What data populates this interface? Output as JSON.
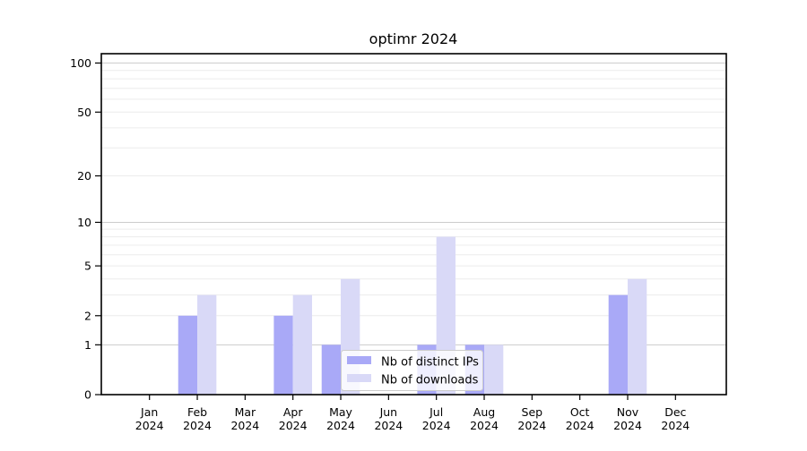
{
  "chart_data": {
    "type": "bar",
    "title": "optimr 2024",
    "categories": [
      "Jan 2024",
      "Feb 2024",
      "Mar 2024",
      "Apr 2024",
      "May 2024",
      "Jun 2024",
      "Jul 2024",
      "Aug 2024",
      "Sep 2024",
      "Oct 2024",
      "Nov 2024",
      "Dec 2024"
    ],
    "series": [
      {
        "name": "Nb of distinct IPs",
        "color": "#a9a9f7",
        "values": [
          0,
          2,
          0,
          2,
          1,
          0,
          1,
          1,
          0,
          0,
          3,
          0
        ]
      },
      {
        "name": "Nb of downloads",
        "color": "#d9d9f7",
        "values": [
          0,
          3,
          0,
          3,
          4,
          0,
          8,
          1,
          0,
          0,
          4,
          0
        ]
      }
    ],
    "xlabel": "",
    "ylabel": "",
    "yscale": "log1p",
    "ylim": [
      0,
      114
    ],
    "yticks": [
      0,
      1,
      2,
      5,
      10,
      20,
      50,
      100
    ],
    "major_gridlines": [
      1,
      10,
      100
    ],
    "minor_gridlines": [
      2,
      3,
      4,
      5,
      6,
      7,
      8,
      9,
      20,
      30,
      40,
      50,
      60,
      70,
      80,
      90
    ],
    "grid": "on",
    "legend_position": "lower-center-inside",
    "colors": {
      "spine": "#000000",
      "major_grid": "#cccccc",
      "minor_grid": "#ececec",
      "legend_border": "#cccccc",
      "legend_background": "rgba(255,255,255,0.8)"
    }
  }
}
